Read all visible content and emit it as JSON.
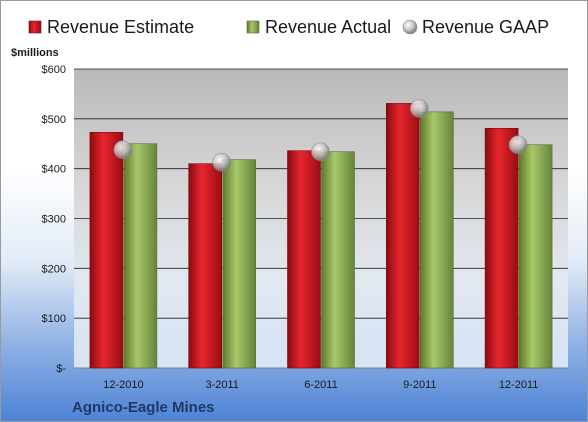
{
  "chart_data": {
    "type": "bar",
    "title": "",
    "unit_label": "$millions",
    "footer": "Agnico-Eagle Mines",
    "categories": [
      "12-2010",
      "3-2011",
      "6-2011",
      "9-2011",
      "12-2011"
    ],
    "series": [
      {
        "name": "Revenue Estimate",
        "type": "bar",
        "color": "#d0121b",
        "values": [
          473,
          410,
          436,
          531,
          481
        ]
      },
      {
        "name": "Revenue Actual",
        "type": "bar",
        "color": "#8fae4e",
        "values": [
          450,
          418,
          434,
          514,
          448
        ]
      },
      {
        "name": "Revenue GAAP",
        "type": "marker",
        "color": "#c8c8c8",
        "values": [
          438,
          413,
          434,
          521,
          448
        ]
      }
    ],
    "yticks": [
      {
        "value": 0,
        "label": "$-"
      },
      {
        "value": 100,
        "label": "$100"
      },
      {
        "value": 200,
        "label": "$200"
      },
      {
        "value": 300,
        "label": "$300"
      },
      {
        "value": 400,
        "label": "$400"
      },
      {
        "value": 500,
        "label": "$500"
      },
      {
        "value": 600,
        "label": "$600"
      }
    ],
    "ylim": [
      0,
      600
    ],
    "grid": true,
    "legend_position": "top"
  }
}
